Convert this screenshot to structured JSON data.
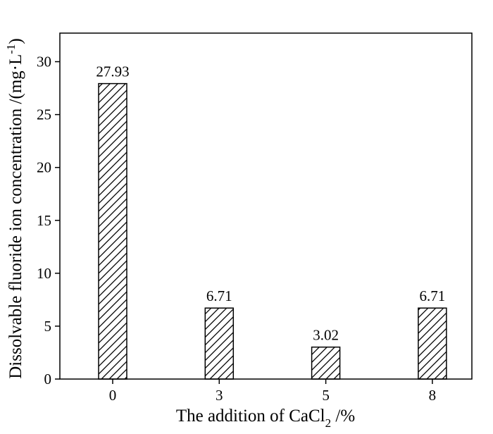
{
  "chart_data": {
    "type": "bar",
    "xlabel": {
      "text": "The addition of CaCl",
      "subscript": "2",
      "suffix": " /%"
    },
    "ylabel": {
      "text": "Dissolvable fluoride ion concentration /(mg·L",
      "superscript": "-1",
      "suffix": ")"
    },
    "categories": [
      "0",
      "3",
      "5",
      "8"
    ],
    "values": [
      27.93,
      6.71,
      3.02,
      6.71
    ],
    "color": "#000000",
    "hatch": "/",
    "ylim": [
      0,
      32.7
    ],
    "yticks": [
      0,
      5,
      10,
      15,
      20,
      25,
      30
    ],
    "grid": false
  }
}
